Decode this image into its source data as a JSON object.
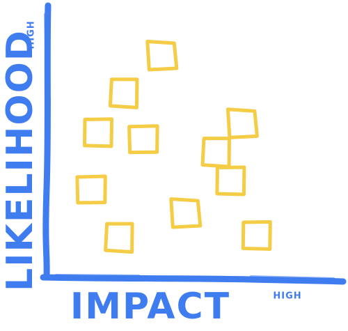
{
  "colors": {
    "axis": "#3f7cf0",
    "note": "#f4cc45"
  },
  "axes": {
    "x_label": "IMPACT",
    "x_high": "HIGH",
    "y_label": "LIKELIHOOD",
    "y_high": "HIGH"
  },
  "notes": [
    {
      "label": "",
      "impact": 0.42,
      "likelihood": 0.93
    },
    {
      "label": "",
      "impact": 0.26,
      "likelihood": 0.76
    },
    {
      "label": "",
      "impact": 0.15,
      "likelihood": 0.58
    },
    {
      "label": "",
      "impact": 0.34,
      "likelihood": 0.55
    },
    {
      "label": "",
      "impact": 0.76,
      "likelihood": 0.62
    },
    {
      "label": "",
      "impact": 0.65,
      "likelihood": 0.49
    },
    {
      "label": "",
      "impact": 0.71,
      "likelihood": 0.36
    },
    {
      "label": "",
      "impact": 0.12,
      "likelihood": 0.32
    },
    {
      "label": "",
      "impact": 0.52,
      "likelihood": 0.21
    },
    {
      "label": "",
      "impact": 0.24,
      "likelihood": 0.1
    },
    {
      "label": "",
      "impact": 0.82,
      "likelihood": 0.11
    }
  ]
}
